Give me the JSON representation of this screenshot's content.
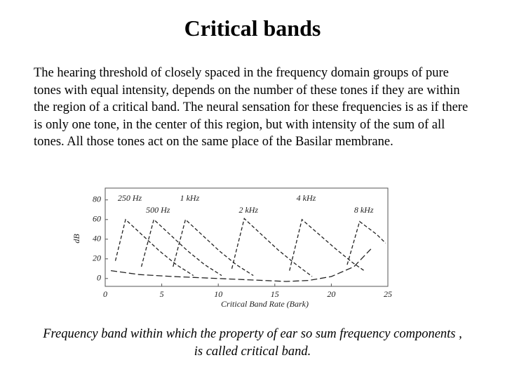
{
  "title": "Critical bands",
  "paragraph": "The hearing threshold of closely spaced in the frequency domain groups of pure tones with equal intensity, depends on the number of these tones if they are within the region of a critical band. The neural sensation for these frequencies is as if there is only one tone, in the center of this region, but with intensity of the sum of all tones. All those tones act on the same place of the Basilar membrane.",
  "caption": "Frequency band within which the property of ear so sum frequency components , is called critical band.",
  "chart_data": {
    "type": "line",
    "xlabel": "Critical Band Rate (Bark)",
    "ylabel": "dB",
    "xlim": [
      0,
      25
    ],
    "ylim": [
      -8,
      92
    ],
    "xticks": [
      0,
      5,
      10,
      15,
      20,
      25
    ],
    "yticks": [
      0,
      20,
      40,
      60,
      80
    ],
    "series": [
      {
        "name": "250 Hz",
        "color": "#222222",
        "style": "dashed",
        "x": [
          0.9,
          1.8,
          3.3,
          4.8,
          6.3,
          7.8
        ],
        "values": [
          18,
          60,
          44,
          28,
          14,
          3
        ]
      },
      {
        "name": "500 Hz",
        "color": "#222222",
        "style": "dashed",
        "x": [
          3.2,
          4.3,
          5.8,
          7.3,
          8.8,
          10.3
        ],
        "values": [
          12,
          60,
          44,
          28,
          14,
          3
        ]
      },
      {
        "name": "1 kHz",
        "color": "#222222",
        "style": "dashed",
        "x": [
          6.0,
          7.1,
          8.6,
          10.1,
          11.6,
          13.1
        ],
        "values": [
          12,
          60,
          44,
          28,
          14,
          3
        ]
      },
      {
        "name": "2 kHz",
        "color": "#222222",
        "style": "dashed",
        "x": [
          11.2,
          12.3,
          13.8,
          15.3,
          16.8,
          18.3
        ],
        "values": [
          10,
          61,
          45,
          29,
          15,
          2
        ]
      },
      {
        "name": "4 kHz",
        "color": "#222222",
        "style": "dashed",
        "x": [
          16.3,
          17.4,
          18.9,
          20.4,
          21.9,
          22.9
        ],
        "values": [
          8,
          60,
          45,
          30,
          16,
          8
        ]
      },
      {
        "name": "8 kHz",
        "color": "#222222",
        "style": "dashed",
        "x": [
          21.4,
          22.5,
          24.0,
          24.8
        ],
        "values": [
          14,
          58,
          45,
          36
        ]
      },
      {
        "color": "#222222",
        "style": "long-dashed",
        "x": [
          0.5,
          3,
          6,
          10,
          14,
          16,
          18,
          20,
          22,
          23.5
        ],
        "values": [
          8,
          4,
          2,
          0,
          -2,
          -3,
          -2,
          2,
          12,
          30
        ]
      }
    ]
  }
}
